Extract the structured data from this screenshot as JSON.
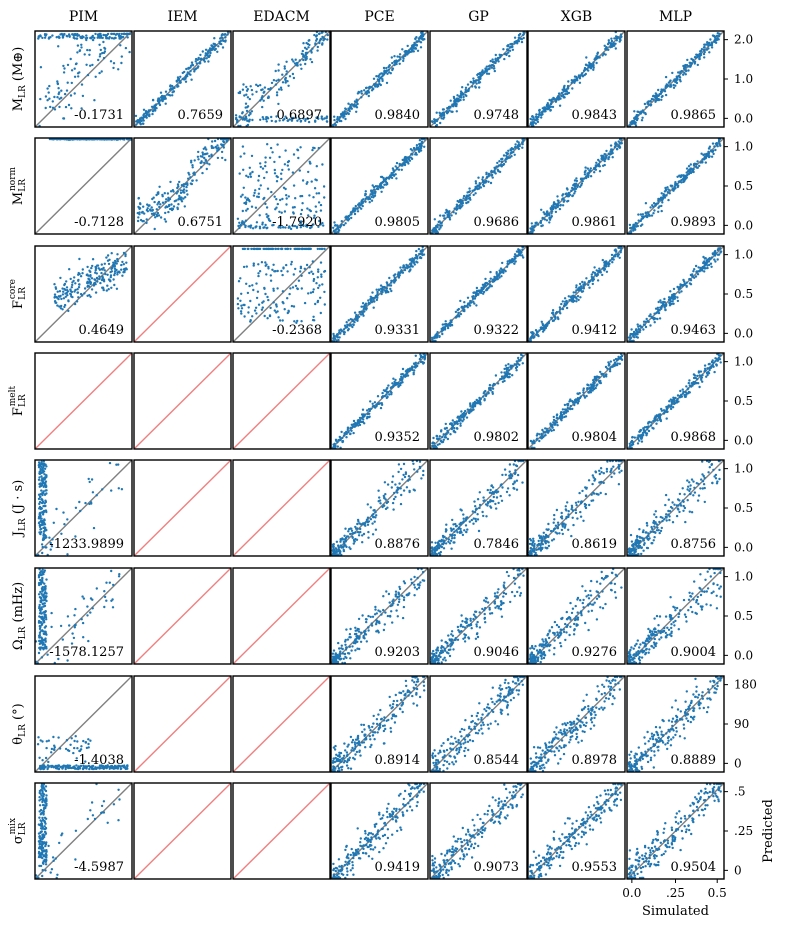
{
  "chart_data": {
    "type": "scatter",
    "title": "",
    "columns": [
      "PIM",
      "IEM",
      "EDACM",
      "PCE",
      "GP",
      "XGB",
      "MLP"
    ],
    "rows": [
      {
        "label_main": "M",
        "label_sub": "LR",
        "label_sup": "",
        "label_unit": " (M⊕)",
        "right_ticks": [
          "2.0",
          "1.0",
          "0.0"
        ],
        "scores": [
          "-0.1731",
          "0.7659",
          "0.6897",
          "0.9840",
          "0.9748",
          "0.9843",
          "0.9865"
        ],
        "patterns": [
          "satTop",
          "good",
          "mixedLow",
          "good",
          "good",
          "good",
          "good"
        ]
      },
      {
        "label_main": "M",
        "label_sub": "LR",
        "label_sup": "norm",
        "label_unit": "",
        "right_ticks": [
          "1.0",
          "0.5",
          "0.0"
        ],
        "scores": [
          "-0.7128",
          "0.6751",
          "-1.7920",
          "0.9805",
          "0.9686",
          "0.9861",
          "0.9893"
        ],
        "patterns": [
          "lineTop",
          "sigmoid",
          "wild",
          "good",
          "good",
          "good",
          "good"
        ]
      },
      {
        "label_main": "F",
        "label_sub": "LR",
        "label_sup": "core",
        "label_unit": "",
        "right_ticks": [
          "1.0",
          "0.5",
          "0.0"
        ],
        "scores": [
          "0.4649",
          "",
          "-0.2368",
          "0.9331",
          "0.9322",
          "0.9412",
          "0.9463"
        ],
        "patterns": [
          "flat",
          "none",
          "wildTop",
          "good",
          "good",
          "good",
          "good"
        ]
      },
      {
        "label_main": "F",
        "label_sub": "LR",
        "label_sup": "melt",
        "label_unit": "",
        "right_ticks": [
          "1.0",
          "0.5",
          "0.0"
        ],
        "scores": [
          "",
          "",
          "",
          "0.9352",
          "0.9802",
          "0.9804",
          "0.9868"
        ],
        "patterns": [
          "none",
          "none",
          "none",
          "good",
          "good",
          "good",
          "good"
        ]
      },
      {
        "label_main": "J",
        "label_sub": "LR",
        "label_sup": "",
        "label_unit": " (J · s)",
        "right_ticks": [
          "1.0",
          "0.5",
          "0.0"
        ],
        "scores": [
          "-1233.9899",
          "",
          "",
          "0.8876",
          "0.7846",
          "0.8619",
          "0.8756"
        ],
        "patterns": [
          "leftCol",
          "none",
          "none",
          "skew",
          "skew",
          "skew",
          "skew"
        ]
      },
      {
        "label_main": "Ω",
        "label_sub": "LR",
        "label_sup": "",
        "label_unit": " (mHz)",
        "right_ticks": [
          "1.0",
          "0.5",
          "0.0"
        ],
        "scores": [
          "-1578.1257",
          "",
          "",
          "0.9203",
          "0.9046",
          "0.9276",
          "0.9004"
        ],
        "patterns": [
          "leftCol",
          "none",
          "none",
          "skew",
          "skew",
          "skew",
          "skew"
        ]
      },
      {
        "label_main": "θ",
        "label_sub": "LR",
        "label_sup": "",
        "label_unit": " (°)",
        "right_ticks": [
          "180",
          "90",
          "0"
        ],
        "scores": [
          "-1.4038",
          "",
          "",
          "0.8914",
          "0.8544",
          "0.8978",
          "0.8889"
        ],
        "patterns": [
          "lineBottom",
          "none",
          "none",
          "noisy",
          "noisy",
          "noisy",
          "noisy"
        ]
      },
      {
        "label_main": "σ",
        "label_sub": "LR",
        "label_sup": "mix",
        "label_unit": "",
        "right_ticks": [
          ".5",
          ".25",
          "0"
        ],
        "scores": [
          "-4.5987",
          "",
          "",
          "0.9419",
          "0.9073",
          "0.9553",
          "0.9504"
        ],
        "patterns": [
          "leftCol",
          "none",
          "none",
          "noisy",
          "noisy",
          "noisy",
          "noisy"
        ]
      }
    ],
    "x_ticks": [
      "0.0",
      ".25",
      "0.5"
    ],
    "xlabel": "Simulated",
    "ylabel": "Predicted",
    "colors": {
      "points": "#1f77b4",
      "diagonal": "#808080",
      "unavailable": "#f08080",
      "frame": "#000000"
    }
  }
}
